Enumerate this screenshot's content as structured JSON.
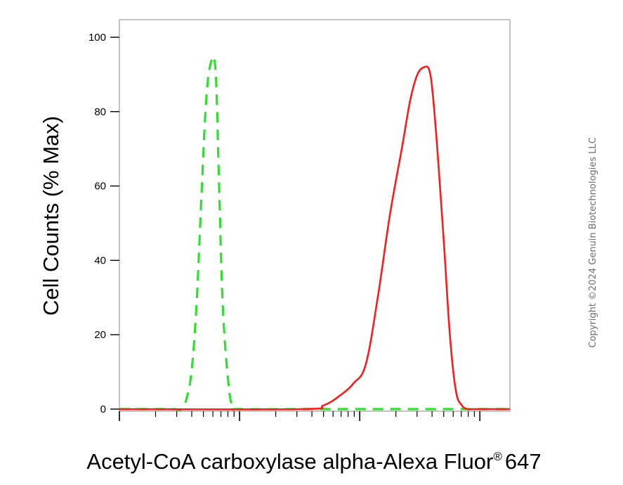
{
  "chart_data": {
    "type": "line",
    "xlabel": "Acetyl-CoA carboxylase alpha-Alexa Fluor",
    "xlabel_suffix": "647",
    "xlabel_mark": "®",
    "ylabel": "Cell Counts (% Max)",
    "ylim": [
      0,
      100
    ],
    "yticks": [
      0,
      20,
      40,
      60,
      80,
      100
    ],
    "ytick_labels": [
      "0",
      "20",
      "40",
      "60",
      "80",
      "100"
    ],
    "xscale": "log",
    "xlim_log10": [
      0,
      3.25
    ],
    "grid": false,
    "legend": null,
    "series": [
      {
        "color": "#2ee02e",
        "dash": true,
        "x_log10": [
          0.0,
          0.3,
          0.45,
          0.52,
          0.56,
          0.6,
          0.64,
          0.68,
          0.72,
          0.76,
          0.8,
          0.83,
          0.86,
          0.91,
          0.95,
          1.0,
          1.5,
          2.0,
          2.5,
          3.25
        ],
        "y": [
          0,
          0,
          0,
          0,
          3,
          10,
          27,
          55,
          82,
          93,
          91,
          60,
          28,
          6,
          0.5,
          0,
          0,
          0,
          0,
          0
        ]
      },
      {
        "color": "#ff1a1a",
        "dash": false,
        "x_log10": [
          0.0,
          1.5,
          1.7,
          1.85,
          1.95,
          2.05,
          2.15,
          2.25,
          2.35,
          2.42,
          2.48,
          2.54,
          2.58,
          2.61,
          2.65,
          2.7,
          2.75,
          2.8,
          2.85,
          2.9,
          2.95,
          3.25
        ],
        "y": [
          0,
          0,
          1,
          4,
          7,
          12,
          30,
          52,
          70,
          83,
          90,
          92,
          91,
          84,
          68,
          45,
          20,
          5,
          1,
          0,
          0,
          0
        ]
      }
    ]
  },
  "watermark": "Copyright ©2024 Genuin Biotechnologies LLC"
}
